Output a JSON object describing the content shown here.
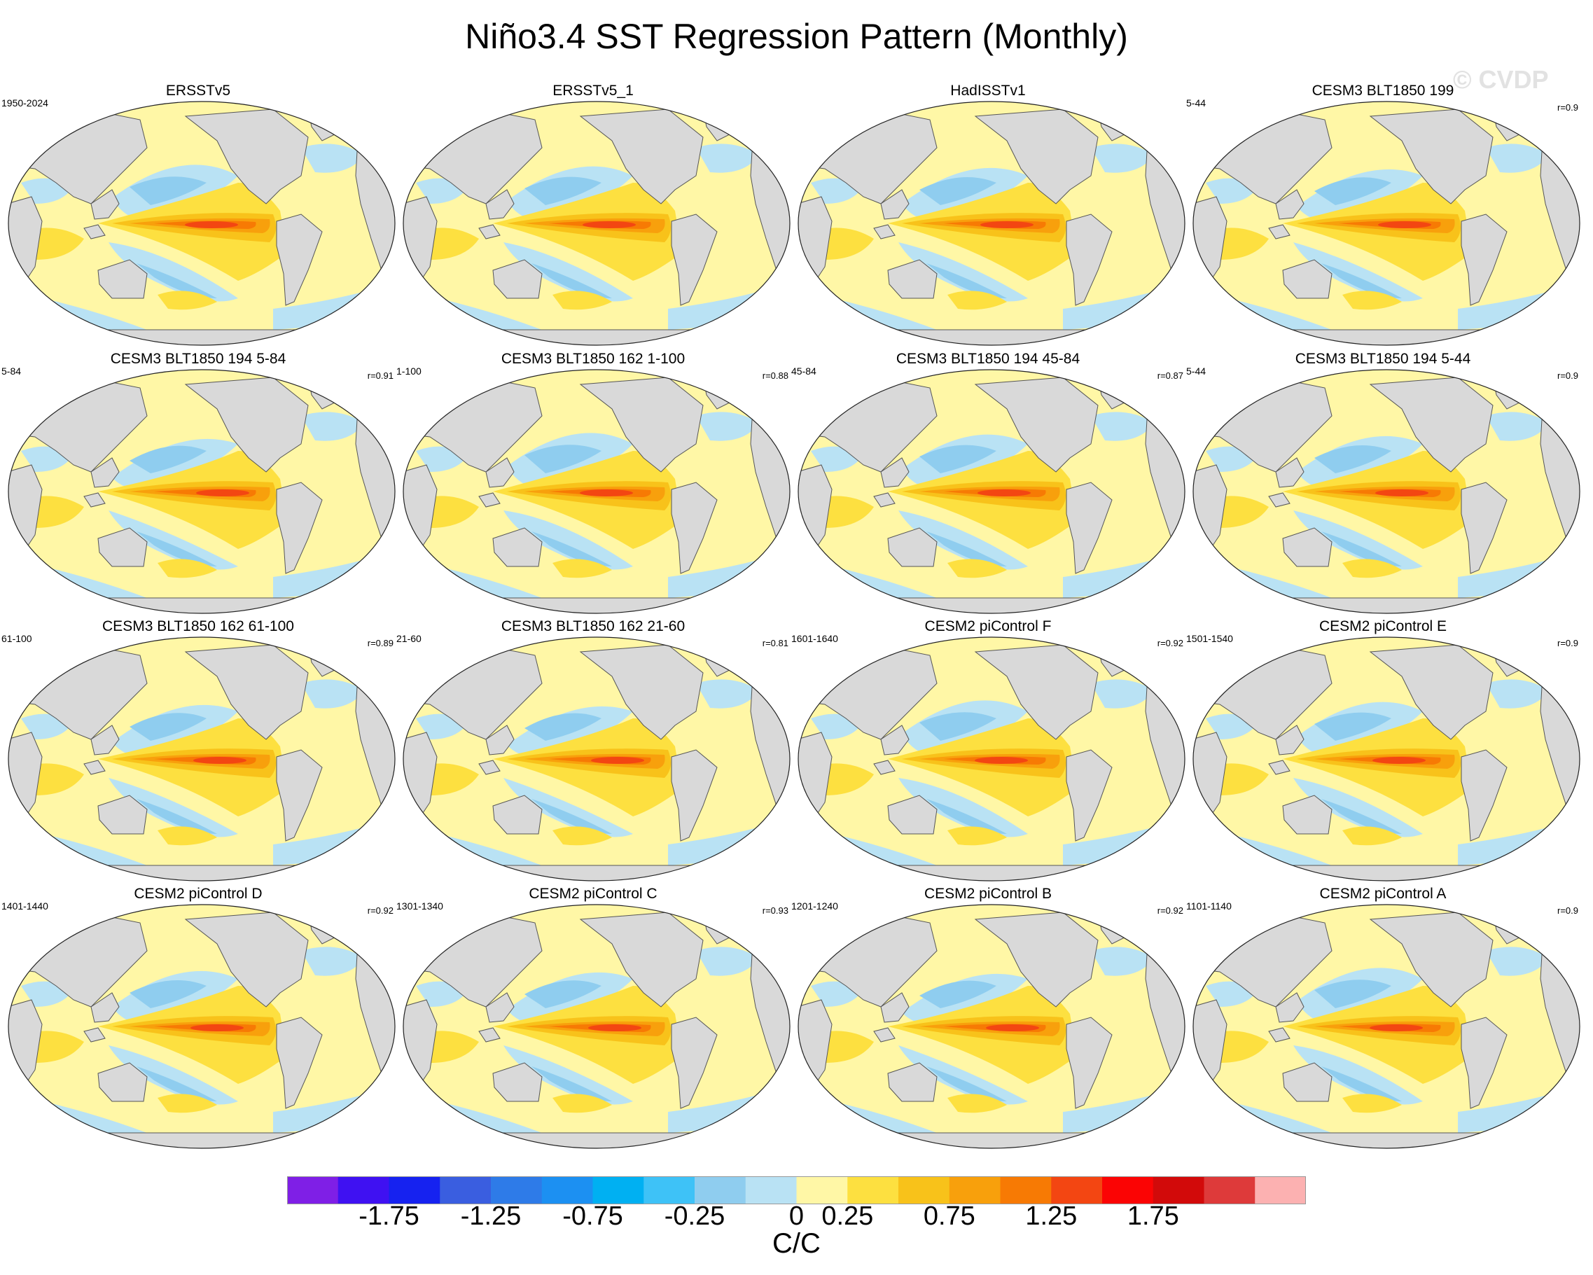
{
  "title": "Niño3.4 SST Regression Pattern (Monthly)",
  "watermark": "© CVDP",
  "units": "C/C",
  "chart_data": {
    "type": "heatmap",
    "projection": "Robinson global map, Pacific-centered",
    "variable": "SST regression onto Niño3.4 index",
    "panels": [
      {
        "title": "ERSSTv5",
        "period": "1950-2024",
        "r": ""
      },
      {
        "title": "ERSSTv5_1",
        "period": "",
        "r": ""
      },
      {
        "title": "HadISSTv1",
        "period": "",
        "r": ""
      },
      {
        "title": "CESM3 BLT1850 199",
        "period": "5-44",
        "r": "r=0.9"
      },
      {
        "title": "CESM3 BLT1850 194 5-84",
        "period": "5-84",
        "r": "r=0.91"
      },
      {
        "title": "CESM3 BLT1850 162 1-100",
        "period": "1-100",
        "r": "r=0.88"
      },
      {
        "title": "CESM3 BLT1850 194 45-84",
        "period": "45-84",
        "r": "r=0.87"
      },
      {
        "title": "CESM3 BLT1850 194 5-44",
        "period": "5-44",
        "r": "r=0.9"
      },
      {
        "title": "CESM3 BLT1850 162 61-100",
        "period": "61-100",
        "r": "r=0.89"
      },
      {
        "title": "CESM3 BLT1850 162 21-60",
        "period": "21-60",
        "r": "r=0.81"
      },
      {
        "title": "CESM2 piControl F",
        "period": "1601-1640",
        "r": "r=0.92"
      },
      {
        "title": "CESM2 piControl E",
        "period": "1501-1540",
        "r": "r=0.9"
      },
      {
        "title": "CESM2 piControl D",
        "period": "1401-1440",
        "r": "r=0.92"
      },
      {
        "title": "CESM2 piControl C",
        "period": "1301-1340",
        "r": "r=0.93"
      },
      {
        "title": "CESM2 piControl B",
        "period": "1201-1240",
        "r": "r=0.92"
      },
      {
        "title": "CESM2 piControl A",
        "period": "1101-1140",
        "r": "r=0.9"
      }
    ],
    "colorbar": {
      "tick_labels": [
        "-1.75",
        "-1.25",
        "-0.75",
        "-0.25",
        "0",
        "0.25",
        "0.75",
        "1.25",
        "1.75"
      ],
      "tick_values": [
        -1.75,
        -1.25,
        -0.75,
        -0.25,
        0,
        0.25,
        0.75,
        1.25,
        1.75
      ],
      "colors": [
        "#7f1fe6",
        "#3f11f2",
        "#1622f0",
        "#3a5ee0",
        "#2e7be8",
        "#1c90f2",
        "#00b0f2",
        "#3ec2f7",
        "#8fcdef",
        "#b9e2f4",
        "#fff7a6",
        "#fde040",
        "#f8c21a",
        "#f8a00c",
        "#f77a04",
        "#f34612",
        "#fb0404",
        "#d20a0a",
        "#de3a3a",
        "#fcb1b1"
      ]
    }
  }
}
